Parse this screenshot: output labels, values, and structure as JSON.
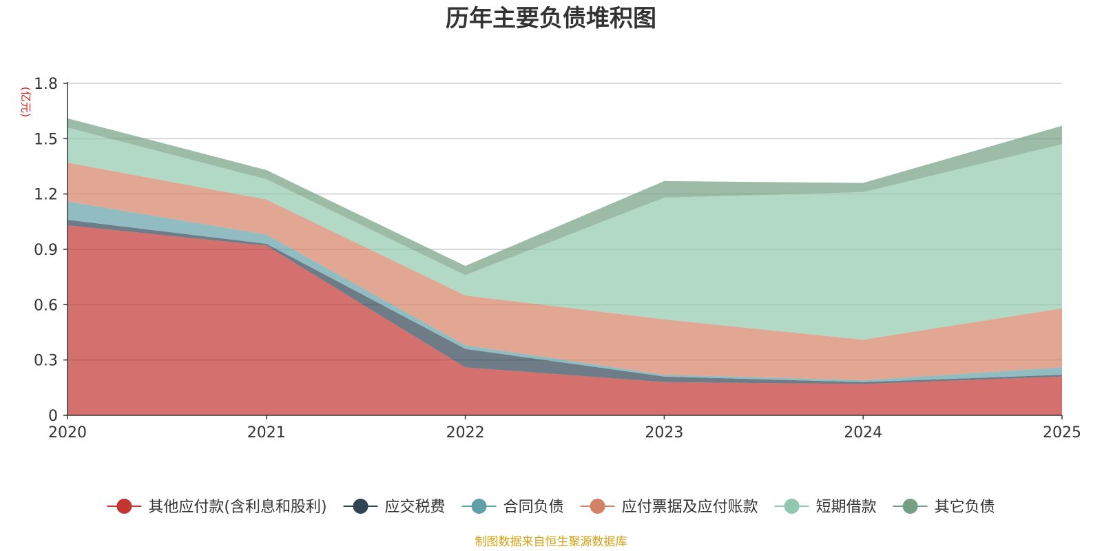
{
  "chart_data": {
    "type": "area",
    "stacked": true,
    "title": "历年主要负债堆积图",
    "unit_label": "(亿元)",
    "x": [
      "2020",
      "2021",
      "2022",
      "2023",
      "2024",
      "2025"
    ],
    "y_ticks": [
      "0",
      "0.3",
      "0.6",
      "0.9",
      "1.2",
      "1.5",
      "1.8"
    ],
    "ylim": [
      0,
      1.8
    ],
    "grid": true,
    "legend_position": "bottom",
    "series": [
      {
        "name": "其他应付款(含利息和股利)",
        "color": "#c23531",
        "values": [
          1.03,
          0.92,
          0.26,
          0.18,
          0.17,
          0.21
        ]
      },
      {
        "name": "应交税费",
        "color": "#2f4554",
        "values": [
          0.03,
          0.01,
          0.1,
          0.03,
          0.01,
          0.01
        ]
      },
      {
        "name": "合同负债",
        "color": "#61a0a8",
        "values": [
          0.1,
          0.05,
          0.02,
          0.01,
          0.01,
          0.04
        ]
      },
      {
        "name": "应付票据及应付账款",
        "color": "#d48265",
        "values": [
          0.21,
          0.19,
          0.27,
          0.3,
          0.22,
          0.32
        ]
      },
      {
        "name": "短期借款",
        "color": "#91c7ae",
        "values": [
          0.19,
          0.11,
          0.11,
          0.66,
          0.8,
          0.89
        ]
      },
      {
        "name": "其它负债",
        "color": "#749f83",
        "values": [
          0.05,
          0.05,
          0.05,
          0.09,
          0.05,
          0.1
        ]
      }
    ],
    "source": "制图数据来自恒生聚源数据库"
  }
}
